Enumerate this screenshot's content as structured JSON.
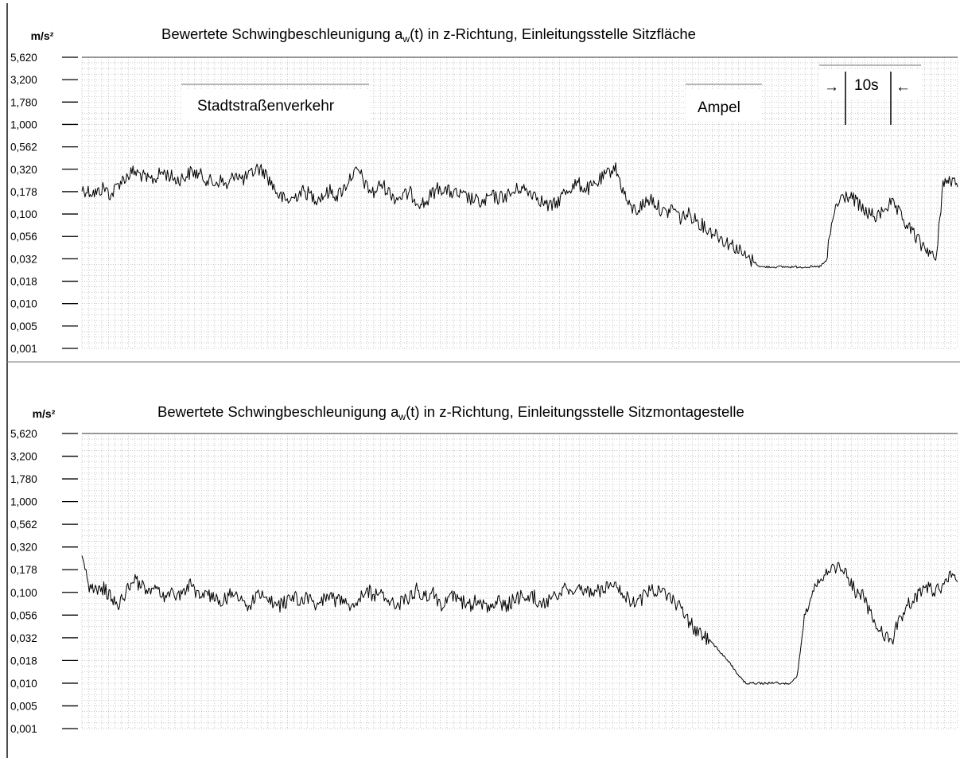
{
  "chart_data": [
    {
      "type": "line",
      "title": "Bewertete Schwingbeschleunigung aₙ(t)  in z-Richtung, Einleitungsstelle Sitzfläche",
      "title_parts": {
        "pre": "Bewertete Schwingbeschleunigung a",
        "sub": "w",
        "post": "(t)  in z-Richtung, Einleitungsstelle Sitzfläche"
      },
      "ylabel": "m/s²",
      "yscale": "log",
      "yticks": [
        "5,620",
        "3,200",
        "1,780",
        "1,000",
        "0,562",
        "0,320",
        "0,178",
        "0,100",
        "0,056",
        "0,032",
        "0,018",
        "0,010",
        "0,005",
        "0,001"
      ],
      "ytick_values": [
        5.62,
        3.2,
        1.78,
        1.0,
        0.562,
        0.32,
        0.178,
        0.1,
        0.056,
        0.032,
        0.018,
        0.01,
        0.005,
        0.001
      ],
      "grid": true,
      "annotations": {
        "segment1": "Stadtstraßenverkehr",
        "segment2": "Ampel",
        "scale_bar": "10s",
        "arrow_left": "→",
        "arrow_right": "←"
      },
      "x_unit": "s",
      "x": [
        0,
        1,
        2,
        3,
        4,
        5,
        6,
        7,
        8,
        9,
        10,
        11,
        12,
        13,
        14,
        15,
        16,
        17,
        18,
        19,
        20,
        21,
        22,
        23,
        24,
        25,
        26,
        27,
        28,
        29,
        30,
        31,
        32,
        33,
        34,
        35,
        36,
        37,
        38,
        39,
        40,
        41,
        42,
        43,
        44,
        45,
        46,
        47,
        48,
        49,
        50,
        51,
        52,
        53,
        54,
        55,
        56,
        57,
        58,
        59,
        60,
        61,
        62,
        63,
        64,
        65,
        66,
        67,
        68,
        69,
        70,
        71,
        72,
        73,
        74,
        75,
        76,
        77,
        78,
        79,
        80,
        81,
        82,
        83,
        84,
        85,
        86,
        87,
        88,
        89,
        90,
        91,
        92,
        93,
        94,
        95,
        96,
        97,
        98,
        99,
        100,
        101,
        102,
        103,
        104,
        105,
        106,
        107,
        108,
        109,
        110,
        111,
        112,
        113,
        114,
        115,
        116,
        117,
        118,
        119,
        120
      ],
      "series": [
        {
          "values": [
            0.19,
            0.18,
            0.17,
            0.2,
            0.16,
            0.22,
            0.26,
            0.3,
            0.28,
            0.24,
            0.25,
            0.3,
            0.27,
            0.24,
            0.26,
            0.3,
            0.28,
            0.25,
            0.22,
            0.24,
            0.2,
            0.3,
            0.24,
            0.27,
            0.33,
            0.3,
            0.22,
            0.16,
            0.14,
            0.15,
            0.18,
            0.17,
            0.15,
            0.16,
            0.18,
            0.16,
            0.2,
            0.28,
            0.3,
            0.2,
            0.17,
            0.22,
            0.18,
            0.15,
            0.16,
            0.17,
            0.14,
            0.13,
            0.17,
            0.2,
            0.18,
            0.17,
            0.16,
            0.15,
            0.14,
            0.13,
            0.16,
            0.15,
            0.16,
            0.17,
            0.2,
            0.18,
            0.17,
            0.14,
            0.12,
            0.13,
            0.17,
            0.2,
            0.22,
            0.19,
            0.2,
            0.24,
            0.28,
            0.35,
            0.2,
            0.12,
            0.11,
            0.13,
            0.15,
            0.12,
            0.1,
            0.12,
            0.09,
            0.1,
            0.09,
            0.075,
            0.065,
            0.06,
            0.05,
            0.046,
            0.04,
            0.033,
            0.03,
            0.026,
            0.026,
            0.026,
            0.026,
            0.026,
            0.026,
            0.026,
            0.026,
            0.026,
            0.03,
            0.1,
            0.15,
            0.16,
            0.14,
            0.11,
            0.1,
            0.09,
            0.12,
            0.13,
            0.1,
            0.075,
            0.06,
            0.045,
            0.04,
            0.03,
            0.22,
            0.24,
            0.2
          ]
        }
      ]
    },
    {
      "type": "line",
      "title": "Bewertete Schwingbeschleunigung aₙ(t)  in z-Richtung, Einleitungsstelle Sitzmontagestelle",
      "title_parts": {
        "pre": "Bewertete Schwingbeschleunigung a",
        "sub": "w",
        "post": "(t)  in z-Richtung, Einleitungsstelle Sitzmontagestelle"
      },
      "ylabel": "m/s²",
      "yscale": "log",
      "yticks": [
        "5,620",
        "3,200",
        "1,780",
        "1,000",
        "0,562",
        "0,320",
        "0,178",
        "0,100",
        "0,056",
        "0,032",
        "0,018",
        "0,010",
        "0,005",
        "0,001"
      ],
      "ytick_values": [
        5.62,
        3.2,
        1.78,
        1.0,
        0.562,
        0.32,
        0.178,
        0.1,
        0.056,
        0.032,
        0.018,
        0.01,
        0.005,
        0.001
      ],
      "grid": true,
      "x_unit": "s",
      "x": [
        0,
        1,
        2,
        3,
        4,
        5,
        6,
        7,
        8,
        9,
        10,
        11,
        12,
        13,
        14,
        15,
        16,
        17,
        18,
        19,
        20,
        21,
        22,
        23,
        24,
        25,
        26,
        27,
        28,
        29,
        30,
        31,
        32,
        33,
        34,
        35,
        36,
        37,
        38,
        39,
        40,
        41,
        42,
        43,
        44,
        45,
        46,
        47,
        48,
        49,
        50,
        51,
        52,
        53,
        54,
        55,
        56,
        57,
        58,
        59,
        60,
        61,
        62,
        63,
        64,
        65,
        66,
        67,
        68,
        69,
        70,
        71,
        72,
        73,
        74,
        75,
        76,
        77,
        78,
        79,
        80,
        81,
        82,
        83,
        84,
        85,
        86,
        87,
        88,
        89,
        90,
        91,
        92,
        93,
        94,
        95,
        96,
        97,
        98,
        99,
        100,
        101,
        102,
        103,
        104,
        105,
        106,
        107,
        108,
        109,
        110,
        111,
        112,
        113,
        114,
        115,
        116,
        117,
        118,
        119,
        120
      ],
      "series": [
        {
          "values": [
            0.3,
            0.11,
            0.1,
            0.11,
            0.09,
            0.07,
            0.1,
            0.14,
            0.12,
            0.1,
            0.11,
            0.09,
            0.1,
            0.09,
            0.11,
            0.12,
            0.09,
            0.1,
            0.09,
            0.08,
            0.09,
            0.1,
            0.08,
            0.07,
            0.09,
            0.1,
            0.08,
            0.07,
            0.08,
            0.09,
            0.08,
            0.09,
            0.07,
            0.08,
            0.09,
            0.08,
            0.09,
            0.07,
            0.09,
            0.11,
            0.09,
            0.1,
            0.08,
            0.07,
            0.08,
            0.09,
            0.11,
            0.09,
            0.1,
            0.07,
            0.08,
            0.09,
            0.08,
            0.07,
            0.08,
            0.07,
            0.07,
            0.08,
            0.07,
            0.08,
            0.09,
            0.08,
            0.09,
            0.07,
            0.08,
            0.09,
            0.11,
            0.1,
            0.12,
            0.1,
            0.11,
            0.1,
            0.12,
            0.14,
            0.1,
            0.08,
            0.07,
            0.09,
            0.11,
            0.1,
            0.09,
            0.08,
            0.07,
            0.05,
            0.04,
            0.035,
            0.03,
            0.025,
            0.02,
            0.016,
            0.012,
            0.01,
            0.01,
            0.01,
            0.01,
            0.01,
            0.01,
            0.01,
            0.012,
            0.05,
            0.1,
            0.12,
            0.16,
            0.18,
            0.2,
            0.15,
            0.1,
            0.09,
            0.06,
            0.04,
            0.035,
            0.03,
            0.05,
            0.07,
            0.08,
            0.1,
            0.12,
            0.1,
            0.12,
            0.15,
            0.13
          ]
        }
      ]
    }
  ]
}
